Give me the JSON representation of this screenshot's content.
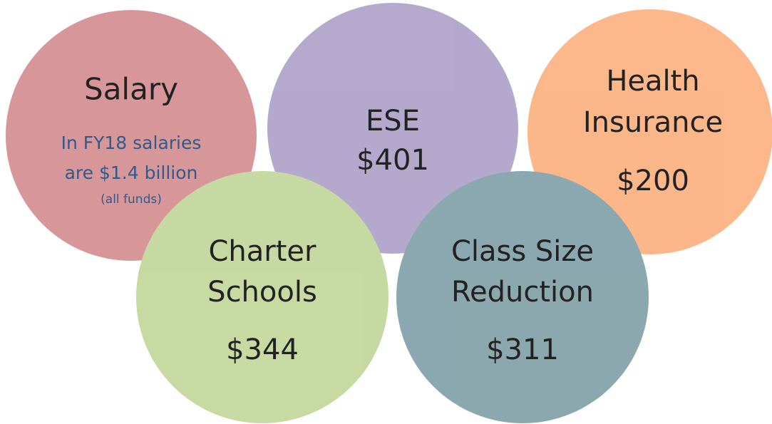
{
  "nodes": [
    {
      "title": [
        "Salary"
      ],
      "note": [
        "In FY18 salaries",
        "are $1.4 billion",
        "(all funds)"
      ]
    },
    {
      "title": [
        "ESE"
      ],
      "amount": "$401"
    },
    {
      "title": [
        "Health",
        "Insurance"
      ],
      "amount": "$200"
    },
    {
      "title": [
        "Charter",
        "Schools"
      ],
      "amount": "$344"
    },
    {
      "title": [
        "Class Size",
        "Reduction"
      ],
      "amount": "$311"
    }
  ]
}
